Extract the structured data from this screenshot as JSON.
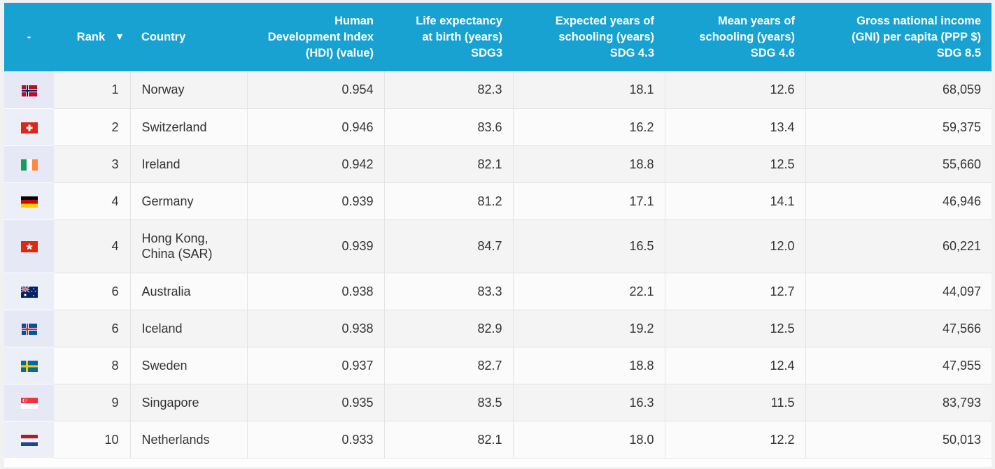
{
  "table": {
    "headers": {
      "flag": "-",
      "rank": "Rank",
      "rank_sort_icon": "sort-descending-icon",
      "country": "Country",
      "hdi": "Human\nDevelopment Index\n(HDI) (value)",
      "life": "Life expectancy\nat birth (years)\nSDG3",
      "expected": "Expected years of\nschooling (years)\nSDG 4.3",
      "mean": "Mean years of\nschooling (years)\nSDG 4.6",
      "gni": "Gross national income\n(GNI) per capita (PPP $)\nSDG 8.5"
    },
    "rows": [
      {
        "flag": "norway-flag-icon",
        "rank": "1",
        "country": "Norway",
        "hdi": "0.954",
        "life": "82.3",
        "expected": "18.1",
        "mean": "12.6",
        "gni": "68,059"
      },
      {
        "flag": "switzerland-flag-icon",
        "rank": "2",
        "country": "Switzerland",
        "hdi": "0.946",
        "life": "83.6",
        "expected": "16.2",
        "mean": "13.4",
        "gni": "59,375"
      },
      {
        "flag": "ireland-flag-icon",
        "rank": "3",
        "country": "Ireland",
        "hdi": "0.942",
        "life": "82.1",
        "expected": "18.8",
        "mean": "12.5",
        "gni": "55,660"
      },
      {
        "flag": "germany-flag-icon",
        "rank": "4",
        "country": "Germany",
        "hdi": "0.939",
        "life": "81.2",
        "expected": "17.1",
        "mean": "14.1",
        "gni": "46,946"
      },
      {
        "flag": "hong-kong-flag-icon",
        "rank": "4",
        "country": "Hong Kong,\nChina (SAR)",
        "hdi": "0.939",
        "life": "84.7",
        "expected": "16.5",
        "mean": "12.0",
        "gni": "60,221"
      },
      {
        "flag": "australia-flag-icon",
        "rank": "6",
        "country": "Australia",
        "hdi": "0.938",
        "life": "83.3",
        "expected": "22.1",
        "mean": "12.7",
        "gni": "44,097"
      },
      {
        "flag": "iceland-flag-icon",
        "rank": "6",
        "country": "Iceland",
        "hdi": "0.938",
        "life": "82.9",
        "expected": "19.2",
        "mean": "12.5",
        "gni": "47,566"
      },
      {
        "flag": "sweden-flag-icon",
        "rank": "8",
        "country": "Sweden",
        "hdi": "0.937",
        "life": "82.7",
        "expected": "18.8",
        "mean": "12.4",
        "gni": "47,955"
      },
      {
        "flag": "singapore-flag-icon",
        "rank": "9",
        "country": "Singapore",
        "hdi": "0.935",
        "life": "83.5",
        "expected": "16.3",
        "mean": "11.5",
        "gni": "83,793"
      },
      {
        "flag": "netherlands-flag-icon",
        "rank": "10",
        "country": "Netherlands",
        "hdi": "0.933",
        "life": "82.1",
        "expected": "18.0",
        "mean": "12.2",
        "gni": "50,013"
      }
    ]
  },
  "colors": {
    "header_bg": "#17a2d1",
    "header_text": "#ffffff",
    "row_odd": "#f4f4f4",
    "row_even": "#fbfbfb",
    "flag_cell": "#e6e8f5"
  }
}
